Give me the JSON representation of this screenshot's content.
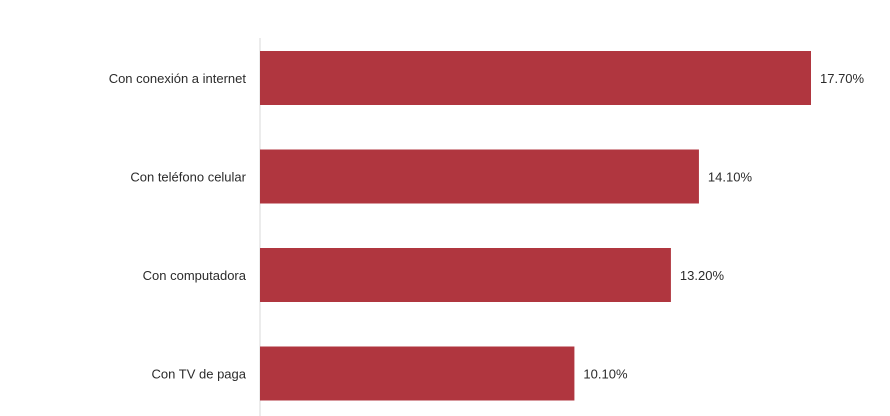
{
  "chart_data": {
    "type": "bar",
    "orientation": "horizontal",
    "categories": [
      "Con conexión a internet",
      "Con teléfono celular",
      "Con computadora",
      "Con TV de paga"
    ],
    "values": [
      17.7,
      14.1,
      13.2,
      10.1
    ],
    "value_labels": [
      "17.70%",
      "14.10%",
      "13.20%",
      "10.10%"
    ],
    "unit": "%",
    "xlim": [
      0,
      17.7
    ],
    "grid": false,
    "legend": "none",
    "bar_color": "#b0363f"
  }
}
